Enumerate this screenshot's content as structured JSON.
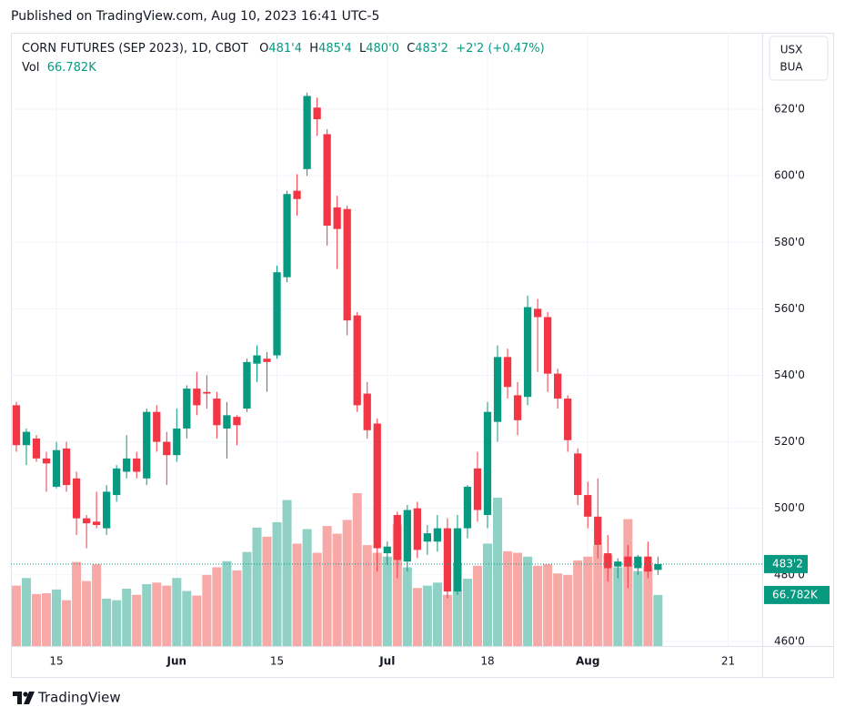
{
  "published": "Published on TradingView.com, Aug 10, 2023 16:41 UTC-5",
  "footer": "TradingView",
  "chart_data": {
    "type": "candlestick",
    "title": "CORN FUTURES (SEP 2023), 1D, CBOT",
    "currency": [
      "USX",
      "BUA"
    ],
    "legend": {
      "o_label": "O",
      "o": "481'4",
      "h_label": "H",
      "h": "485'4",
      "l_label": "L",
      "l": "480'0",
      "c_label": "C",
      "c": "483'2",
      "change": "+2'2",
      "change_pct": "(+0.47%)",
      "vol_label": "Vol"
    },
    "last_price_label": "483'2",
    "up_color": "#089981",
    "down_color": "#f23645",
    "volume_up_color": "#8fd1c5",
    "volume_down_color": "#f7a9a7",
    "open": [
      531,
      519,
      521,
      515,
      506.5,
      518,
      509,
      497,
      496,
      494,
      504,
      511,
      515,
      509,
      529,
      520,
      516,
      524,
      536,
      535,
      533,
      524,
      527.5,
      530,
      543.5,
      545,
      546,
      569.5,
      595.5,
      602,
      620.5,
      612.5,
      590.5,
      590,
      558,
      534.5,
      525.5,
      486.5,
      498,
      484,
      500,
      490,
      490,
      494,
      475,
      494,
      512,
      498,
      526,
      545.5,
      534,
      533.5,
      560,
      557.5,
      540.5,
      533,
      516.5,
      504,
      497.5,
      486.5,
      482.5,
      485.5,
      482,
      485.5,
      481.5
    ],
    "high": [
      532,
      524,
      522,
      517,
      520,
      520,
      511,
      498,
      505,
      507,
      513,
      522,
      517,
      530,
      531,
      523,
      530,
      537,
      541,
      540,
      535,
      532,
      528,
      545,
      549,
      547,
      573,
      595.5,
      600.5,
      625,
      623.5,
      614,
      594,
      591,
      559,
      538,
      527,
      490,
      499,
      501,
      502,
      495,
      498,
      497,
      498,
      507,
      517,
      532,
      549,
      548,
      538,
      564,
      563,
      559,
      542,
      534,
      518,
      508,
      509,
      492,
      485,
      489,
      486,
      490,
      485.5
    ],
    "low": [
      517,
      513,
      514,
      505,
      506,
      505,
      492,
      488,
      494,
      492,
      502,
      509,
      509,
      507,
      517,
      507,
      514,
      521,
      528,
      530,
      521,
      515,
      519,
      529,
      538,
      535,
      545,
      568,
      588,
      600,
      612,
      579,
      572,
      552,
      529,
      521,
      481,
      483,
      479,
      481,
      485,
      486,
      487,
      473,
      474,
      491,
      496,
      494,
      520,
      533,
      522,
      531,
      541,
      535,
      530,
      517,
      501,
      494,
      485,
      478,
      479,
      476,
      480,
      479,
      480
    ],
    "close": [
      519,
      523,
      515,
      513.5,
      517.5,
      507,
      497,
      495.5,
      495,
      505,
      512,
      515,
      511,
      529,
      520,
      516,
      524,
      536,
      531,
      534.5,
      525,
      528,
      525,
      544,
      546,
      544,
      571,
      594.5,
      593,
      624,
      617,
      585,
      584,
      556.5,
      531,
      523.5,
      488,
      488.5,
      484.5,
      499.5,
      487.5,
      492.5,
      494,
      475,
      494,
      506.5,
      499.5,
      529,
      545.5,
      536.5,
      526.5,
      560.5,
      557.5,
      540.5,
      533,
      520.5,
      504,
      497.5,
      489,
      482,
      484,
      482.5,
      485.5,
      481,
      483.25
    ],
    "volume": [
      79,
      89,
      68,
      69,
      74,
      60,
      110,
      85,
      107,
      62,
      60,
      75,
      67,
      81,
      83,
      79,
      89,
      72,
      66,
      93,
      103,
      111,
      99,
      123,
      155,
      143,
      162,
      191,
      134,
      153,
      122,
      157,
      147,
      165,
      200,
      132,
      122,
      117,
      159,
      103,
      76,
      79,
      83,
      67,
      109,
      88,
      105,
      134,
      194,
      124,
      122,
      117,
      105,
      107,
      95,
      93,
      112,
      117,
      132,
      119,
      103,
      166,
      98,
      105,
      66.782
    ],
    "volume_label": "66.782K",
    "xlim": [
      -0.54,
      74.4
    ],
    "xticks": [
      {
        "value": 4,
        "label": "15"
      },
      {
        "value": 16,
        "label": "Jun"
      },
      {
        "value": 26,
        "label": "15"
      },
      {
        "value": 37,
        "label": "Jul"
      },
      {
        "value": 47,
        "label": "18"
      },
      {
        "value": 57,
        "label": "Aug"
      },
      {
        "value": 71,
        "label": "21"
      }
    ],
    "ylim": [
      458.6,
      643
    ],
    "yticks": [
      {
        "value": 460,
        "label": "460'0"
      },
      {
        "value": 480,
        "label": "480'0"
      },
      {
        "value": 500,
        "label": "500'0"
      },
      {
        "value": 520,
        "label": "520'0"
      },
      {
        "value": 540,
        "label": "540'0"
      },
      {
        "value": 560,
        "label": "560'0"
      },
      {
        "value": 580,
        "label": "580'0"
      },
      {
        "value": 600,
        "label": "600'0"
      },
      {
        "value": 620,
        "label": "620'0"
      }
    ],
    "grid": true
  }
}
